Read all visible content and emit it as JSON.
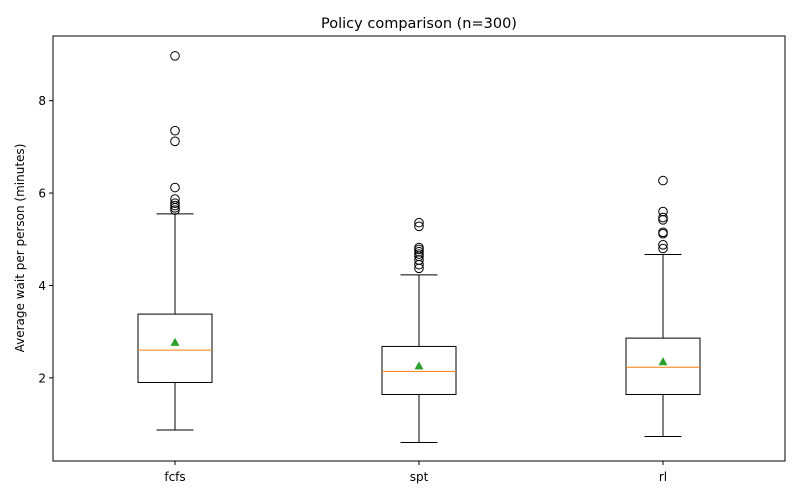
{
  "chart_data": {
    "type": "box",
    "title": "Policy comparison (n=300)",
    "xlabel": "",
    "ylabel": "Average wait per person (minutes)",
    "ylim": [
      0.2,
      9.4
    ],
    "yticks": [
      2,
      4,
      6,
      8
    ],
    "grid": false,
    "legend": "none",
    "categories": [
      "fcfs",
      "spt",
      "rl"
    ],
    "boxes": [
      {
        "category": "fcfs",
        "whisker_low": 0.87,
        "q1": 1.9,
        "median": 2.6,
        "q3": 3.38,
        "whisker_high": 5.55,
        "mean": 2.77,
        "outliers": [
          5.63,
          5.68,
          5.73,
          5.78,
          5.87,
          6.12,
          7.12,
          7.35,
          8.97
        ]
      },
      {
        "category": "spt",
        "whisker_low": 0.6,
        "q1": 1.64,
        "median": 2.14,
        "q3": 2.68,
        "whisker_high": 4.23,
        "mean": 2.26,
        "outliers": [
          4.37,
          4.45,
          4.55,
          4.63,
          4.68,
          4.73,
          4.78,
          4.82,
          5.28,
          5.36
        ]
      },
      {
        "category": "rl",
        "whisker_low": 0.73,
        "q1": 1.64,
        "median": 2.23,
        "q3": 2.86,
        "whisker_high": 4.67,
        "mean": 2.35,
        "outliers": [
          4.8,
          4.88,
          5.12,
          5.15,
          5.42,
          5.47,
          5.6,
          6.27
        ]
      }
    ],
    "colors": {
      "box": "#000000",
      "median": "#ff7f0e",
      "mean": "#2ca02c",
      "outlier_edge": "#000000"
    }
  }
}
